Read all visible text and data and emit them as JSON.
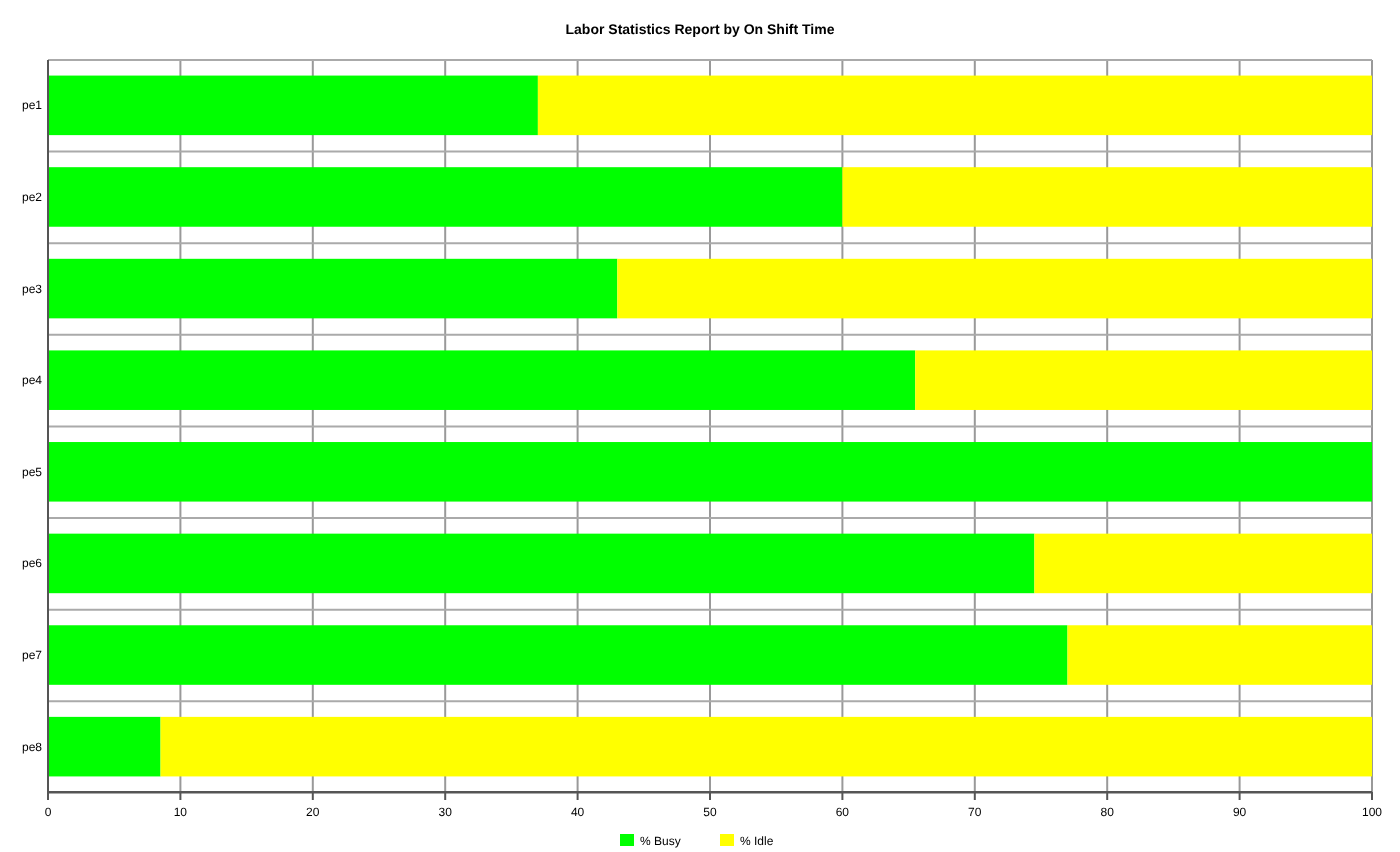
{
  "chart_data": {
    "type": "bar",
    "title": "Labor Statistics   Report by On Shift Time",
    "orientation": "horizontal",
    "stacked": true,
    "categories": [
      "pe1",
      "pe2",
      "pe3",
      "pe4",
      "pe5",
      "pe6",
      "pe7",
      "pe8"
    ],
    "series": [
      {
        "name": "% Busy",
        "color": "#00ff00",
        "values": [
          37,
          60,
          43,
          65.5,
          100,
          74.5,
          77,
          8.5
        ]
      },
      {
        "name": "% Idle",
        "color": "#ffff00",
        "values": [
          63,
          40,
          57,
          34.5,
          0,
          25.5,
          23,
          91.5
        ]
      }
    ],
    "xlim": [
      0,
      100
    ],
    "xticks": [
      0,
      10,
      20,
      30,
      40,
      50,
      60,
      70,
      80,
      90,
      100
    ],
    "grid": true,
    "legend": "bottom"
  }
}
